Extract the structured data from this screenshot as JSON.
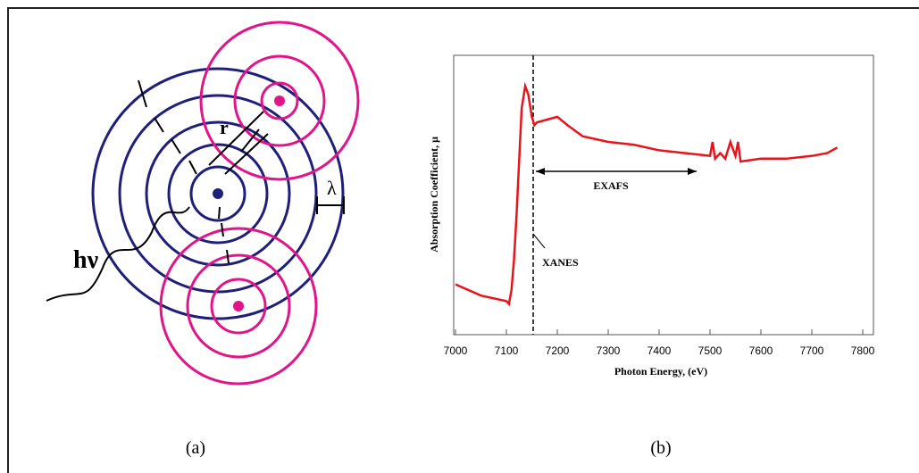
{
  "diagram": {
    "photon_label": "hν",
    "radius_label": "r",
    "wavelength_label": "λ",
    "caption": "(a)"
  },
  "caption_b": "(b)",
  "chart_data": {
    "type": "line",
    "x_label": "Photon Energy, (eV)",
    "y_label": "Absorption Coefficient, μ",
    "annotations": [
      "EXAFS",
      "XANES"
    ],
    "color": "#e8141c",
    "x": [
      7000,
      7050,
      7100,
      7105,
      7110,
      7115,
      7120,
      7125,
      7130,
      7137,
      7143,
      7150,
      7155,
      7160,
      7180,
      7200,
      7220,
      7250,
      7300,
      7350,
      7400,
      7450,
      7500,
      7505,
      7510,
      7520,
      7530,
      7540,
      7550,
      7555,
      7560,
      7600,
      7650,
      7700,
      7730,
      7750
    ],
    "values": [
      0.18,
      0.14,
      0.12,
      0.11,
      0.16,
      0.27,
      0.43,
      0.62,
      0.81,
      0.89,
      0.86,
      0.78,
      0.75,
      0.76,
      0.77,
      0.78,
      0.75,
      0.71,
      0.69,
      0.68,
      0.66,
      0.65,
      0.64,
      0.69,
      0.63,
      0.65,
      0.63,
      0.69,
      0.64,
      0.69,
      0.62,
      0.63,
      0.63,
      0.64,
      0.65,
      0.67
    ],
    "xlim": [
      7000,
      7800
    ],
    "ylim": [
      0,
      1
    ],
    "xticks": [
      7000,
      7100,
      7200,
      7300,
      7400,
      7500,
      7600,
      7700,
      7800
    ]
  }
}
